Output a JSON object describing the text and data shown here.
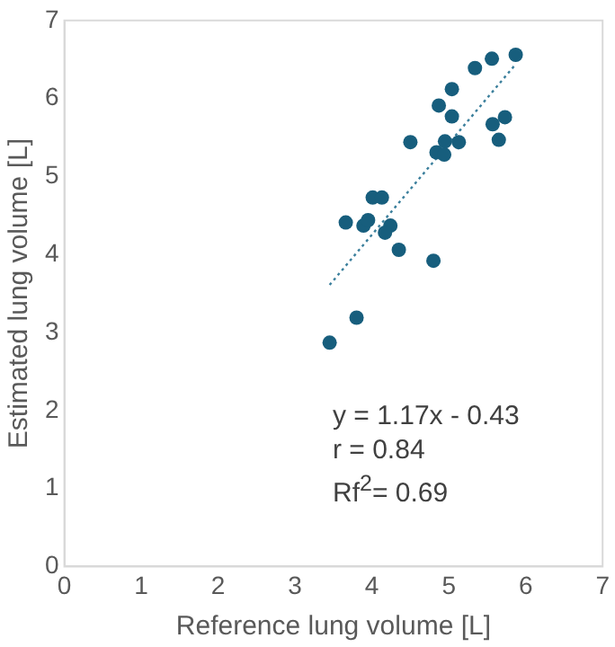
{
  "chart_data": {
    "type": "scatter",
    "xlabel": "Reference lung volume [L]",
    "ylabel": "Estimated lung volume [L]",
    "xlim": [
      0,
      7
    ],
    "ylim": [
      0,
      7
    ],
    "xticks": [
      0,
      1,
      2,
      3,
      4,
      5,
      6,
      7
    ],
    "yticks": [
      0,
      1,
      2,
      3,
      4,
      5,
      6,
      7
    ],
    "grid": false,
    "legend": false,
    "series": [
      {
        "color": "#175e7d",
        "marker": "circle",
        "x": [
          5.87,
          5.56,
          5.34,
          5.04,
          4.87,
          5.04,
          5.73,
          5.57,
          5.65,
          4.5,
          4.95,
          5.13,
          4.84,
          4.94,
          4.01,
          4.13,
          3.66,
          3.89,
          3.95,
          4.24,
          4.17,
          4.35,
          4.8,
          3.8,
          3.45
        ],
        "values": [
          6.56,
          6.51,
          6.39,
          6.12,
          5.91,
          5.77,
          5.76,
          5.67,
          5.47,
          5.44,
          5.45,
          5.44,
          5.31,
          5.28,
          4.73,
          4.73,
          4.41,
          4.37,
          4.44,
          4.37,
          4.28,
          4.06,
          3.92,
          3.19,
          2.87
        ]
      },
      {
        "type": "line",
        "color": "#3b7f9c",
        "line_style": "dotted",
        "marker": "none",
        "x": [
          3.45,
          5.87
        ],
        "values": [
          3.61,
          6.44
        ]
      }
    ],
    "annotations": [
      "y = 1.17x - 0.43",
      "r = 0.84",
      "Rf$^{2}$= 0.69"
    ]
  }
}
